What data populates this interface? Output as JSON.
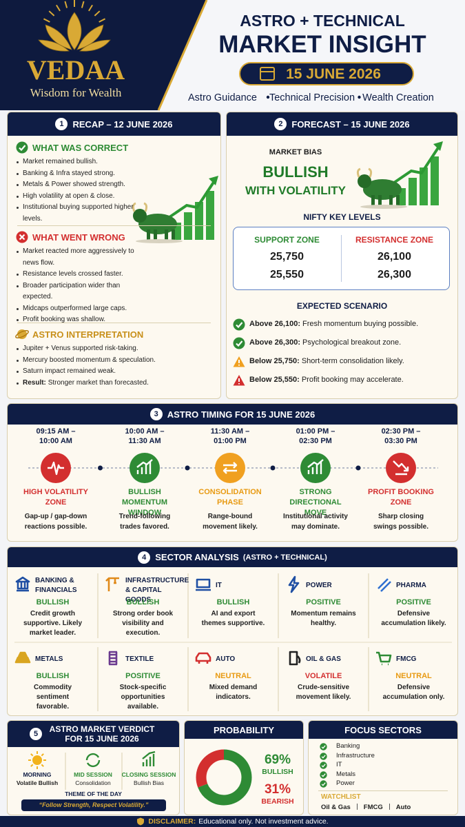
{
  "header": {
    "logo_name": "VEDAA",
    "logo_tagline": "Wisdom for Wealth",
    "title_line1": "ASTRO + TECHNICAL",
    "title_line2": "MARKET INSIGHT",
    "date": "15 JUNE 2026",
    "taglines": [
      "Astro Guidance",
      "Technical Precision",
      "Wealth Creation"
    ]
  },
  "recap": {
    "number": "1",
    "title": "RECAP – 12 JUNE 2026",
    "sections": [
      {
        "heading": "WHAT WAS CORRECT",
        "items": [
          "Market remained bullish.",
          "Banking & Infra stayed strong.",
          "Metals & Power showed strength.",
          "High volatility at open & close.",
          "Institutional buying supported higher levels."
        ]
      },
      {
        "heading": "WHAT WENT WRONG",
        "items": [
          "Market reacted more aggressively to news flow.",
          "Resistance levels crossed faster.",
          "Broader participation wider than expected.",
          "Midcaps outperformed large caps.",
          "Profit booking was shallow."
        ]
      },
      {
        "heading": "ASTRO INTERPRETATION",
        "items": [
          "Jupiter + Venus supported risk-taking.",
          "Mercury boosted momentum & speculation.",
          "Saturn impact remained weak.",
          {
            "bold": "Result:",
            "text": "Stronger market than forecasted."
          }
        ]
      }
    ]
  },
  "forecast": {
    "number": "2",
    "title": "FORECAST – 15 JUNE 2026",
    "bias_label": "MARKET BIAS",
    "bias": "BULLISH",
    "bias_sub": "WITH VOLATILITY",
    "levels_title": "NIFTY KEY LEVELS",
    "support": {
      "title": "SUPPORT ZONE",
      "values": [
        "25,750",
        "25,550"
      ]
    },
    "resistance": {
      "title": "RESISTANCE ZONE",
      "values": [
        "26,100",
        "26,300"
      ]
    },
    "scenario_title": "EXPECTED SCENARIO",
    "scenarios": [
      {
        "bold": "Above 26,100:",
        "text": "Fresh momentum buying possible."
      },
      {
        "bold": "Above 26,300:",
        "text": "Psychological breakout zone."
      },
      {
        "bold": "Below 25,750:",
        "text": "Short-term consolidation likely."
      },
      {
        "bold": "Below 25,550:",
        "text": "Profit booking may accelerate."
      }
    ]
  },
  "timing": {
    "number": "3",
    "title": "ASTRO TIMING FOR 15 JUNE 2026",
    "slots": [
      {
        "time": [
          "09:15 AM –",
          "10:00 AM"
        ],
        "phase": "HIGH VOLATILITY ZONE",
        "desc": "Gap-up / gap-down reactions possible."
      },
      {
        "time": [
          "10:00 AM –",
          "11:30 AM"
        ],
        "phase": "BULLISH MOMENTUM WINDOW",
        "desc": "Trend-following trades favored."
      },
      {
        "time": [
          "11:30 AM –",
          "01:00 PM"
        ],
        "phase": "CONSOLIDATION PHASE",
        "desc": "Range-bound movement likely."
      },
      {
        "time": [
          "01:00 PM –",
          "02:30 PM"
        ],
        "phase": "STRONG DIRECTIONAL MOVE",
        "desc": "Institutional activity may dominate."
      },
      {
        "time": [
          "02:30 PM –",
          "03:30 PM"
        ],
        "phase": "PROFIT BOOKING ZONE",
        "desc": "Sharp closing swings possible."
      }
    ]
  },
  "sectors": {
    "number": "4",
    "title": "SECTOR ANALYSIS",
    "title_note": "(ASTRO + TECHNICAL)",
    "items": [
      {
        "name": "BANKING & FINANCIALS",
        "status": "BULLISH",
        "desc": "Credit growth supportive. Likely market leader."
      },
      {
        "name": "INFRASTRUCTURE & CAPITAL GOODS",
        "status": "BULLISH",
        "desc": "Strong order book visibility and execution."
      },
      {
        "name": "IT",
        "status": "BULLISH",
        "desc": "AI and export themes supportive."
      },
      {
        "name": "POWER",
        "status": "POSITIVE",
        "desc": "Momentum remains healthy."
      },
      {
        "name": "PHARMA",
        "status": "POSITIVE",
        "desc": "Defensive accumulation likely."
      },
      {
        "name": "METALS",
        "status": "BULLISH",
        "desc": "Commodity sentiment favorable."
      },
      {
        "name": "TEXTILE",
        "status": "POSITIVE",
        "desc": "Stock-specific opportunities available."
      },
      {
        "name": "AUTO",
        "status": "NEUTRAL",
        "desc": "Mixed demand indicators."
      },
      {
        "name": "OIL & GAS",
        "status": "VOLATILE",
        "desc": "Crude-sensitive movement likely."
      },
      {
        "name": "FMCG",
        "status": "NEUTRAL",
        "desc": "Defensive accumulation only."
      }
    ]
  },
  "verdict": {
    "number": "5",
    "title": "ASTRO MARKET VERDICT FOR 15 JUNE 2026",
    "sessions": [
      {
        "name": "MORNING",
        "desc": "Volatile Bullish"
      },
      {
        "name": "MID SESSION",
        "desc": "Consolidation"
      },
      {
        "name": "CLOSING SESSION",
        "desc": "Bullish Bias"
      }
    ],
    "theme_label": "THEME OF THE DAY",
    "theme": "“Follow Strength, Respect Volatility.”"
  },
  "probability": {
    "title": "PROBABILITY",
    "items": [
      {
        "value": 69,
        "value_label": "69%",
        "label": "BULLISH",
        "color": "#2e8b35"
      },
      {
        "value": 31,
        "value_label": "31%",
        "label": "BEARISH",
        "color": "#d32f2f"
      }
    ]
  },
  "focus": {
    "title": "FOCUS SECTORS",
    "items": [
      "Banking",
      "Infrastructure",
      "IT",
      "Metals",
      "Power"
    ],
    "watchlist_title": "WATCHLIST",
    "watchlist": [
      "Oil & Gas",
      "FMCG",
      "Auto"
    ]
  },
  "disclaimer": {
    "label": "DISCLAIMER:",
    "text": "Educational only. Not investment advice."
  }
}
